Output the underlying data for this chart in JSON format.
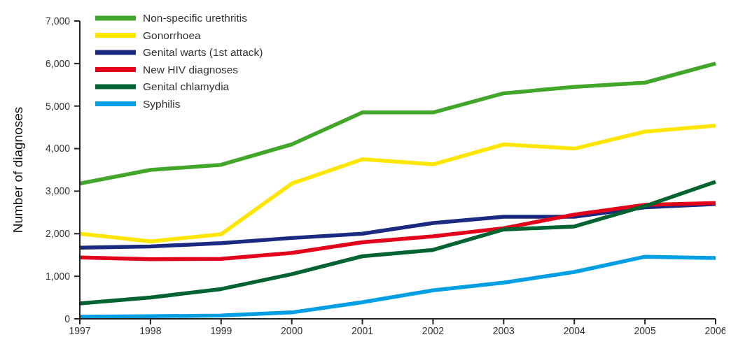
{
  "chart_data": {
    "type": "line",
    "ylabel": "Number of diagnoses",
    "x": [
      1997,
      1998,
      1999,
      2000,
      2001,
      2002,
      2003,
      2004,
      2005,
      2006
    ],
    "xlim": [
      1997,
      2006
    ],
    "xticks": [
      1997,
      1998,
      1999,
      2000,
      2001,
      2002,
      2003,
      2004,
      2005,
      2006
    ],
    "ylim": [
      0,
      7000
    ],
    "yticks": [
      {
        "value": 0,
        "label": "0"
      },
      {
        "value": 1000,
        "label": "1,000"
      },
      {
        "value": 2000,
        "label": "2,000"
      },
      {
        "value": 3000,
        "label": "3,000"
      },
      {
        "value": 4000,
        "label": "4,000"
      },
      {
        "value": 5000,
        "label": "5,000"
      },
      {
        "value": 6000,
        "label": "6,000"
      },
      {
        "value": 7000,
        "label": "7,000"
      }
    ],
    "grid": false,
    "legend": "top left",
    "marker": "none",
    "line_style": "solid",
    "series": [
      {
        "name": "Non-specific urethritis",
        "color": "#42a62a",
        "values": [
          3180,
          3500,
          3620,
          4100,
          4850,
          4850,
          5300,
          5450,
          5550,
          6000
        ]
      },
      {
        "name": "Gonorrhoea",
        "color": "#ffe600",
        "values": [
          2000,
          1820,
          1990,
          3180,
          3750,
          3630,
          4100,
          4000,
          4400,
          4540
        ]
      },
      {
        "name": "Genital warts (1st attack)",
        "color": "#1a2a80",
        "values": [
          1670,
          1700,
          1780,
          1900,
          2000,
          2250,
          2400,
          2400,
          2620,
          2700
        ]
      },
      {
        "name": "New HIV diagnoses",
        "color": "#e2001a",
        "values": [
          1440,
          1400,
          1410,
          1550,
          1800,
          1940,
          2130,
          2450,
          2680,
          2720
        ]
      },
      {
        "name": "Genital chlamydia",
        "color": "#006330",
        "values": [
          360,
          500,
          700,
          1050,
          1470,
          1620,
          2100,
          2170,
          2650,
          3220
        ]
      },
      {
        "name": "Syphilis",
        "color": "#009fe3",
        "values": [
          50,
          60,
          80,
          150,
          390,
          670,
          850,
          1100,
          1460,
          1430
        ]
      }
    ]
  }
}
